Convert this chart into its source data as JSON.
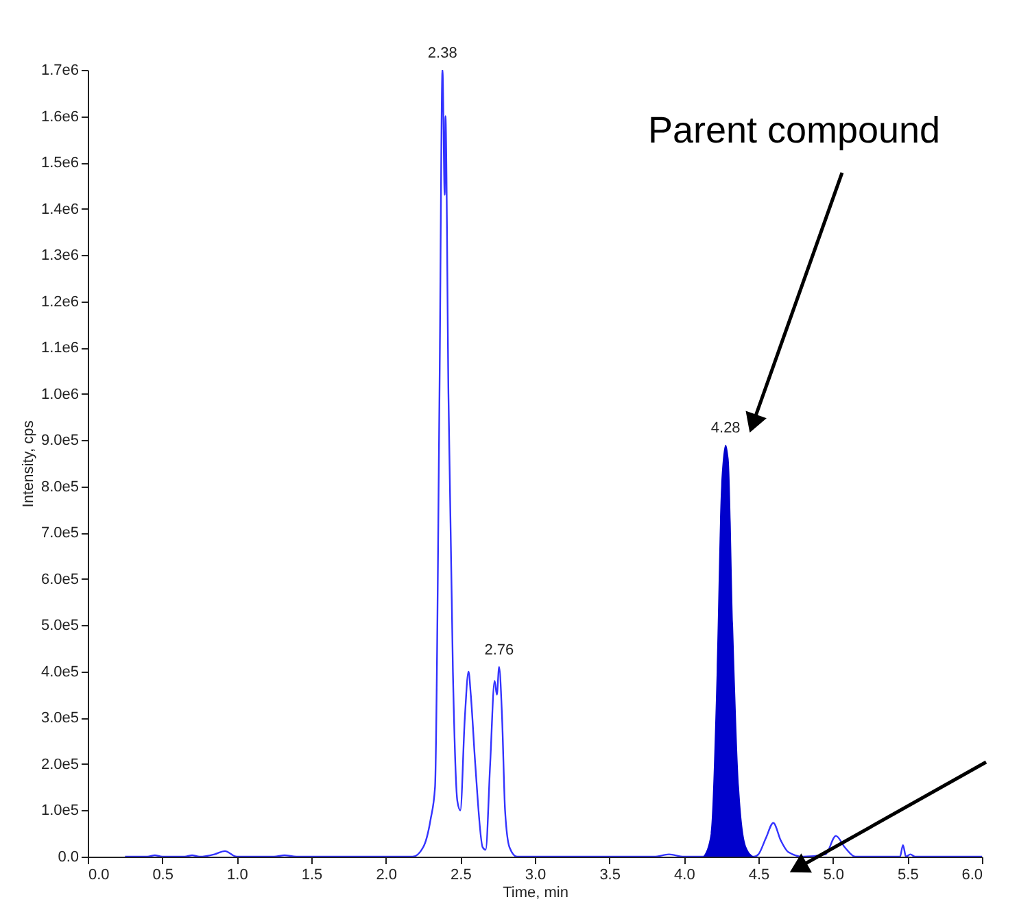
{
  "chart_data": {
    "type": "line",
    "xlabel": "Time, min",
    "ylabel": "Intensity, cps",
    "xlim": [
      0,
      6.0
    ],
    "ylim": [
      0,
      1700000
    ],
    "xticks": [
      {
        "value": 0,
        "label": "0.0"
      },
      {
        "value": 0.5,
        "label": "0.5"
      },
      {
        "value": 1,
        "label": "1.0"
      },
      {
        "value": 1.5,
        "label": "1.5"
      },
      {
        "value": 2,
        "label": "2.0"
      },
      {
        "value": 2.5,
        "label": "2.5"
      },
      {
        "value": 3,
        "label": "3.0"
      },
      {
        "value": 3.5,
        "label": "3.5"
      },
      {
        "value": 4,
        "label": "4.0"
      },
      {
        "value": 4.5,
        "label": "4.5"
      },
      {
        "value": 5,
        "label": "5.0"
      },
      {
        "value": 5.5,
        "label": "5.5"
      },
      {
        "value": 6,
        "label": "6.0"
      }
    ],
    "yticks": [
      {
        "value": 0,
        "label": "0.0"
      },
      {
        "value": 100000,
        "label": "1.0e5"
      },
      {
        "value": 200000,
        "label": "2.0e5"
      },
      {
        "value": 300000,
        "label": "3.0e5"
      },
      {
        "value": 400000,
        "label": "4.0e5"
      },
      {
        "value": 500000,
        "label": "5.0e5"
      },
      {
        "value": 600000,
        "label": "6.0e5"
      },
      {
        "value": 700000,
        "label": "7.0e5"
      },
      {
        "value": 800000,
        "label": "8.0e5"
      },
      {
        "value": 900000,
        "label": "9.0e5"
      },
      {
        "value": 1000000,
        "label": "1.0e6"
      },
      {
        "value": 1100000,
        "label": "1.1e6"
      },
      {
        "value": 1200000,
        "label": "1.2e6"
      },
      {
        "value": 1300000,
        "label": "1.3e6"
      },
      {
        "value": 1400000,
        "label": "1.4e6"
      },
      {
        "value": 1500000,
        "label": "1.5e6"
      },
      {
        "value": 1600000,
        "label": "1.6e6"
      },
      {
        "value": 1700000,
        "label": "1.7e6"
      }
    ],
    "grid": false,
    "series": [
      {
        "color": "#3333ff",
        "x": [
          0.25,
          0.4,
          0.45,
          0.5,
          0.65,
          0.7,
          0.75,
          0.85,
          0.92,
          1.0,
          1.25,
          1.32,
          1.4,
          2.18,
          2.25,
          2.3,
          2.33,
          2.36,
          2.38,
          2.395,
          2.4,
          2.42,
          2.45,
          2.48,
          2.5,
          2.53,
          2.555,
          2.57,
          2.6,
          2.65,
          2.67,
          2.7,
          2.73,
          2.745,
          2.76,
          2.78,
          2.8,
          2.83,
          2.88,
          3.8,
          3.9,
          4.0,
          4.13,
          4.47,
          4.5,
          4.55,
          4.6,
          4.65,
          4.7,
          4.8,
          4.95,
          5.02,
          5.08,
          5.15,
          5.45,
          5.47,
          5.49,
          5.52,
          5.55,
          6.0
        ],
        "values": [
          0,
          0,
          3000,
          0,
          0,
          3000,
          0,
          5000,
          12000,
          0,
          0,
          3000,
          0,
          0,
          20000,
          80000,
          150000,
          1000000,
          1700000,
          1430000,
          1600000,
          1000000,
          400000,
          120000,
          100000,
          300000,
          400000,
          350000,
          200000,
          20000,
          15000,
          200000,
          380000,
          350000,
          410000,
          300000,
          100000,
          20000,
          0,
          0,
          5000,
          0,
          0,
          0,
          5000,
          40000,
          73000,
          35000,
          10000,
          0,
          5000,
          45000,
          20000,
          0,
          0,
          25000,
          0,
          5000,
          0,
          0
        ]
      },
      {
        "type": "area",
        "color": "#0000cc",
        "x": [
          4.13,
          4.18,
          4.22,
          4.25,
          4.28,
          4.3,
          4.33,
          4.37,
          4.42,
          4.47
        ],
        "values": [
          0,
          50000,
          400000,
          800000,
          890000,
          860000,
          500000,
          150000,
          20000,
          0
        ]
      }
    ],
    "annotations": [
      {
        "text": "2.38",
        "x": 2.38,
        "y": 1700000
      },
      {
        "text": "2.76",
        "x": 2.76,
        "y": 410000
      },
      {
        "text": "4.28",
        "x": 4.28,
        "y": 890000
      },
      "Parent compound"
    ]
  }
}
